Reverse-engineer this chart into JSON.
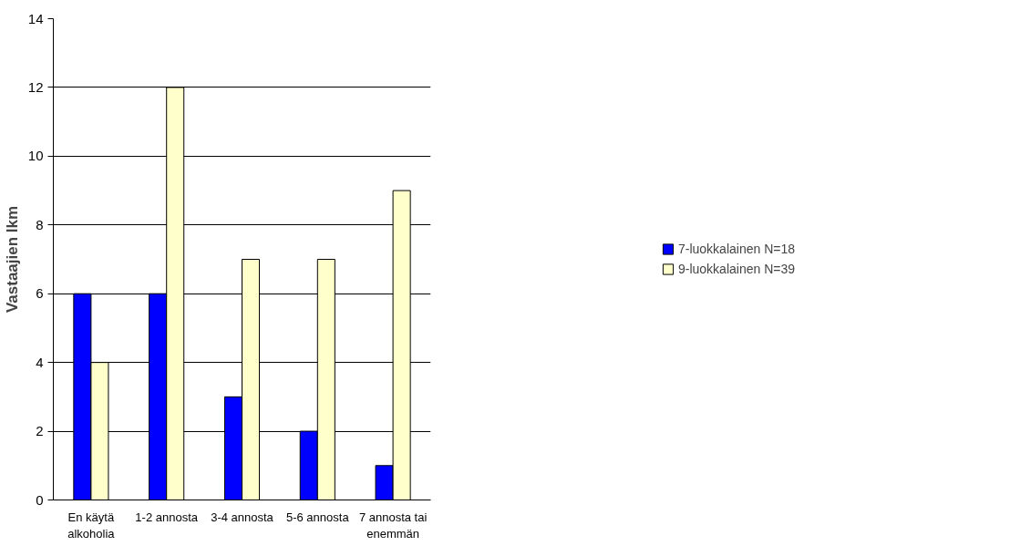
{
  "chart_data": {
    "type": "bar",
    "ylabel": "Vastaajien lkm",
    "categories": [
      "En käytä alkoholia",
      "1-2 annosta",
      "3-4 annosta",
      "5-6 annosta",
      "7 annosta tai enemmän"
    ],
    "series": [
      {
        "name": "7-luokkalainen N=18",
        "color": "#0000ff",
        "values": [
          6,
          6,
          3,
          2,
          1
        ]
      },
      {
        "name": "9-luokkalainen N=39",
        "color": "#ffffcc",
        "values": [
          4,
          12,
          7,
          7,
          9
        ]
      }
    ],
    "ylim": [
      0,
      14
    ],
    "yticks": [
      0,
      2,
      4,
      6,
      8,
      10,
      12,
      14
    ],
    "grid": "y",
    "legend": "right"
  }
}
